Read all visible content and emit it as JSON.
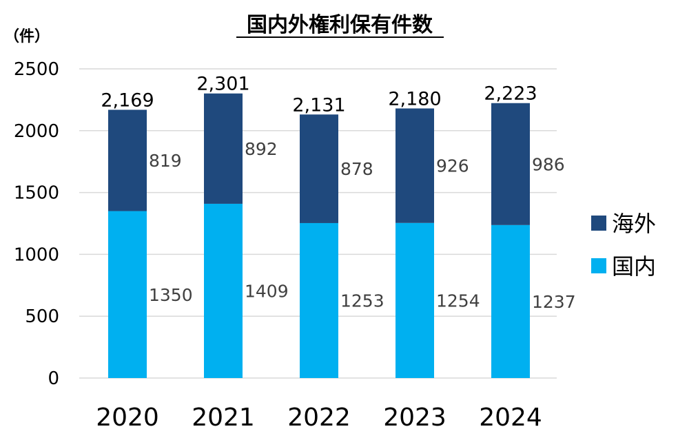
{
  "chart_data": {
    "type": "bar",
    "stacked": true,
    "title": "国内外権利保有件数",
    "unit_label": "（件）",
    "categories": [
      "2020",
      "2021",
      "2022",
      "2023",
      "2024"
    ],
    "series": [
      {
        "name": "国内",
        "color": "#00B0F0",
        "values": [
          1350,
          1409,
          1253,
          1254,
          1237
        ]
      },
      {
        "name": "海外",
        "color": "#1F497D",
        "values": [
          819,
          892,
          878,
          926,
          986
        ]
      }
    ],
    "totals": [
      "2,169",
      "2,301",
      "2,131",
      "2,180",
      "2,223"
    ],
    "yticks": [
      0,
      500,
      1000,
      1500,
      2000,
      2500
    ],
    "ylim": [
      0,
      2500
    ],
    "grid": true,
    "legend_position": "right",
    "legend_order": [
      "海外",
      "国内"
    ]
  }
}
